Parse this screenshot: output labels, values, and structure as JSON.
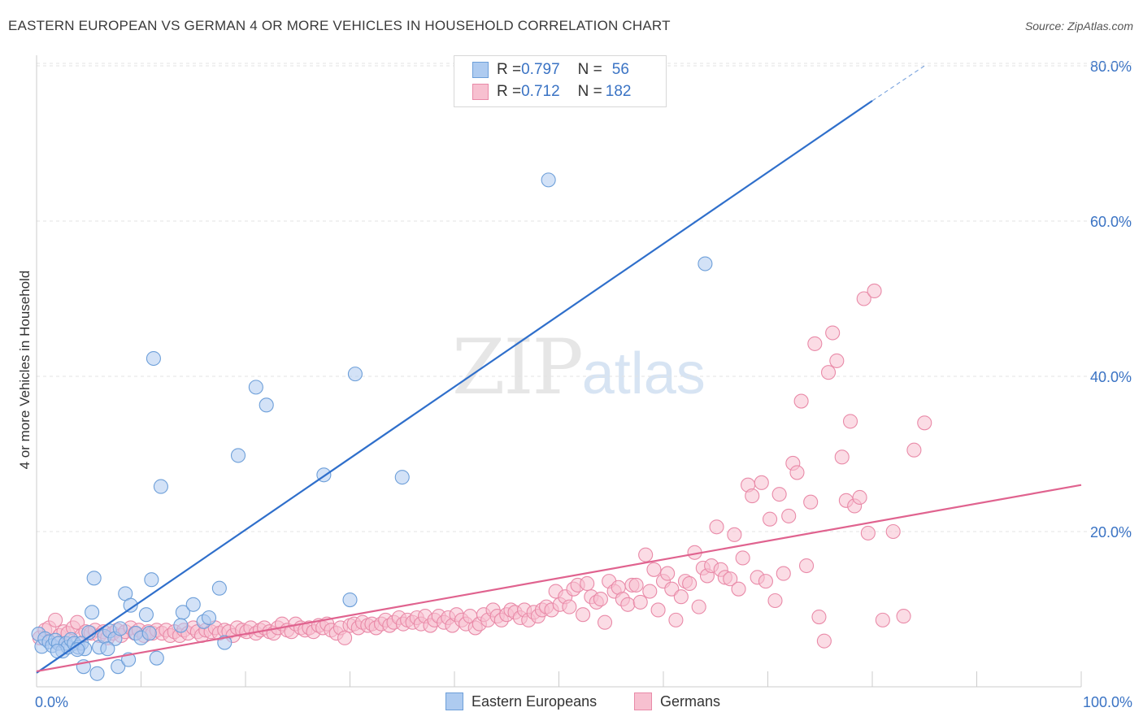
{
  "header": {
    "title": "EASTERN EUROPEAN VS GERMAN 4 OR MORE VEHICLES IN HOUSEHOLD CORRELATION CHART",
    "source": "Source: ZipAtlas.com"
  },
  "watermark": {
    "zip": "ZIP",
    "atlas": "atlas"
  },
  "legend": {
    "rows": [
      {
        "r_label": "R = ",
        "r_value": "0.797",
        "n_label": "N = ",
        "n_value": "56"
      },
      {
        "r_label": "R = ",
        "r_value": "0.712",
        "n_label": "N = ",
        "n_value": "182"
      }
    ]
  },
  "bottom_legend": {
    "series1": "Eastern Europeans",
    "series2": "Germans"
  },
  "colors": {
    "blue_fill": "#aecbf0",
    "blue_stroke": "#6d9fd9",
    "blue_line": "#2f6fcb",
    "pink_fill": "#f7c0d0",
    "pink_stroke": "#e98aa8",
    "pink_line": "#e0638f",
    "axis_label": "#3a73c4",
    "grid": "#e3e3e3"
  },
  "chart_data": {
    "type": "scatter",
    "title": "EASTERN EUROPEAN VS GERMAN 4 OR MORE VEHICLES IN HOUSEHOLD CORRELATION CHART",
    "xlabel": "",
    "ylabel": "4 or more Vehicles in Household",
    "xlim": [
      0,
      100
    ],
    "ylim": [
      0,
      82
    ],
    "x_tick_labels": [
      "0.0%",
      "100.0%"
    ],
    "y_ticks": [
      20,
      40,
      60,
      80
    ],
    "y_tick_labels": [
      "20.0%",
      "40.0%",
      "60.0%",
      "80.0%"
    ],
    "grid": true,
    "legend_position": "top-center",
    "series": [
      {
        "name": "Eastern Europeans",
        "r": 0.797,
        "n": 56,
        "trend": {
          "x0": 0,
          "y0": 1.8,
          "x1": 80,
          "y1": 75.5,
          "dash_to_x": 85,
          "dash_to_y": 80
        },
        "points": [
          [
            0.2,
            6.8
          ],
          [
            0.5,
            5.2
          ],
          [
            0.8,
            6.2
          ],
          [
            1.2,
            5.8
          ],
          [
            1.5,
            5.3
          ],
          [
            1.8,
            6.0
          ],
          [
            2.1,
            5.6
          ],
          [
            2.5,
            4.6
          ],
          [
            2.8,
            5.6
          ],
          [
            3.0,
            5.1
          ],
          [
            3.3,
            6.1
          ],
          [
            3.6,
            5.6
          ],
          [
            4.0,
            5.1
          ],
          [
            4.3,
            5.6
          ],
          [
            4.6,
            4.9
          ],
          [
            5.0,
            7.0
          ],
          [
            5.3,
            9.6
          ],
          [
            5.5,
            14.0
          ],
          [
            6.0,
            5.1
          ],
          [
            6.5,
            6.5
          ],
          [
            7.0,
            7.2
          ],
          [
            7.5,
            6.2
          ],
          [
            8.0,
            7.5
          ],
          [
            8.5,
            12.0
          ],
          [
            9.0,
            10.5
          ],
          [
            9.5,
            6.9
          ],
          [
            10.0,
            6.3
          ],
          [
            10.5,
            9.3
          ],
          [
            11.0,
            13.8
          ],
          [
            11.5,
            3.7
          ],
          [
            11.9,
            25.8
          ],
          [
            14.0,
            9.6
          ],
          [
            15.0,
            10.6
          ],
          [
            16.0,
            8.4
          ],
          [
            16.5,
            8.9
          ],
          [
            17.5,
            12.7
          ],
          [
            18.0,
            5.7
          ],
          [
            19.3,
            29.8
          ],
          [
            21.0,
            38.6
          ],
          [
            22.0,
            36.3
          ],
          [
            27.5,
            27.3
          ],
          [
            30.0,
            11.2
          ],
          [
            30.5,
            40.3
          ],
          [
            35.0,
            27.0
          ],
          [
            49.0,
            65.3
          ],
          [
            64.0,
            54.5
          ],
          [
            11.2,
            42.3
          ],
          [
            2.0,
            4.6
          ],
          [
            5.8,
            1.7
          ],
          [
            7.8,
            2.6
          ],
          [
            8.8,
            3.5
          ],
          [
            4.5,
            2.6
          ],
          [
            6.8,
            4.9
          ],
          [
            10.8,
            6.9
          ],
          [
            13.8,
            7.9
          ],
          [
            3.9,
            4.8
          ]
        ]
      },
      {
        "name": "Germans",
        "r": 0.712,
        "n": 182,
        "trend": {
          "x0": 0,
          "y0": 2.0,
          "x1": 100,
          "y1": 26.0
        },
        "points": [
          [
            0.3,
            6.3
          ],
          [
            0.8,
            7.3
          ],
          [
            1.2,
            7.6
          ],
          [
            1.8,
            8.6
          ],
          [
            2.2,
            6.6
          ],
          [
            2.6,
            7.1
          ],
          [
            3.0,
            6.9
          ],
          [
            3.5,
            7.6
          ],
          [
            3.9,
            8.3
          ],
          [
            4.3,
            6.6
          ],
          [
            4.7,
            7.1
          ],
          [
            5.2,
            6.9
          ],
          [
            5.6,
            7.3
          ],
          [
            6.0,
            6.6
          ],
          [
            6.4,
            7.1
          ],
          [
            6.8,
            6.3
          ],
          [
            7.3,
            6.9
          ],
          [
            7.7,
            7.3
          ],
          [
            8.1,
            6.6
          ],
          [
            8.5,
            7.1
          ],
          [
            9.0,
            7.6
          ],
          [
            9.4,
            6.9
          ],
          [
            9.8,
            7.3
          ],
          [
            10.3,
            6.6
          ],
          [
            10.7,
            7.1
          ],
          [
            11.1,
            6.9
          ],
          [
            11.5,
            7.3
          ],
          [
            12.0,
            6.9
          ],
          [
            12.4,
            7.3
          ],
          [
            12.8,
            6.6
          ],
          [
            13.2,
            7.1
          ],
          [
            13.7,
            6.6
          ],
          [
            14.1,
            7.3
          ],
          [
            14.5,
            6.9
          ],
          [
            15.0,
            7.6
          ],
          [
            15.4,
            7.1
          ],
          [
            15.8,
            6.6
          ],
          [
            16.2,
            7.3
          ],
          [
            16.7,
            7.1
          ],
          [
            17.1,
            7.6
          ],
          [
            17.5,
            6.9
          ],
          [
            18.0,
            7.3
          ],
          [
            18.4,
            7.1
          ],
          [
            18.8,
            6.6
          ],
          [
            19.2,
            7.6
          ],
          [
            19.7,
            7.3
          ],
          [
            20.1,
            7.1
          ],
          [
            20.5,
            7.6
          ],
          [
            21.0,
            6.9
          ],
          [
            21.4,
            7.3
          ],
          [
            21.8,
            7.6
          ],
          [
            22.3,
            7.1
          ],
          [
            22.7,
            6.9
          ],
          [
            23.1,
            7.6
          ],
          [
            23.5,
            8.1
          ],
          [
            24.0,
            7.3
          ],
          [
            24.4,
            7.1
          ],
          [
            24.8,
            8.1
          ],
          [
            25.3,
            7.6
          ],
          [
            25.7,
            7.3
          ],
          [
            26.1,
            7.6
          ],
          [
            26.5,
            7.1
          ],
          [
            27.0,
            7.9
          ],
          [
            27.4,
            7.6
          ],
          [
            27.8,
            8.1
          ],
          [
            28.2,
            7.3
          ],
          [
            28.7,
            6.9
          ],
          [
            29.1,
            7.6
          ],
          [
            29.5,
            6.3
          ],
          [
            30.0,
            7.9
          ],
          [
            30.4,
            8.1
          ],
          [
            30.8,
            7.6
          ],
          [
            31.2,
            8.3
          ],
          [
            31.7,
            7.9
          ],
          [
            32.1,
            8.1
          ],
          [
            32.5,
            7.6
          ],
          [
            33.0,
            8.1
          ],
          [
            33.4,
            8.6
          ],
          [
            33.8,
            7.9
          ],
          [
            34.2,
            8.3
          ],
          [
            34.7,
            8.9
          ],
          [
            35.1,
            8.1
          ],
          [
            35.5,
            8.6
          ],
          [
            36.0,
            8.3
          ],
          [
            36.4,
            8.9
          ],
          [
            36.8,
            8.1
          ],
          [
            37.2,
            9.1
          ],
          [
            37.7,
            7.9
          ],
          [
            38.1,
            8.6
          ],
          [
            38.5,
            9.1
          ],
          [
            39.0,
            8.3
          ],
          [
            39.4,
            8.9
          ],
          [
            39.8,
            7.9
          ],
          [
            40.2,
            9.3
          ],
          [
            40.7,
            8.6
          ],
          [
            41.1,
            8.1
          ],
          [
            41.5,
            9.1
          ],
          [
            42.0,
            7.6
          ],
          [
            42.4,
            8.1
          ],
          [
            42.8,
            9.3
          ],
          [
            43.2,
            8.6
          ],
          [
            43.7,
            9.9
          ],
          [
            44.1,
            9.1
          ],
          [
            44.5,
            8.6
          ],
          [
            45.0,
            9.3
          ],
          [
            45.4,
            9.9
          ],
          [
            45.8,
            9.6
          ],
          [
            46.3,
            8.9
          ],
          [
            46.7,
            9.9
          ],
          [
            47.1,
            8.6
          ],
          [
            47.6,
            9.6
          ],
          [
            48.0,
            9.1
          ],
          [
            48.4,
            9.9
          ],
          [
            48.8,
            10.3
          ],
          [
            49.3,
            9.9
          ],
          [
            49.7,
            12.3
          ],
          [
            50.1,
            10.6
          ],
          [
            50.6,
            11.6
          ],
          [
            51.0,
            10.3
          ],
          [
            51.4,
            12.6
          ],
          [
            51.8,
            13.1
          ],
          [
            52.3,
            9.3
          ],
          [
            52.7,
            13.3
          ],
          [
            53.1,
            11.6
          ],
          [
            53.6,
            10.9
          ],
          [
            54.0,
            11.3
          ],
          [
            54.4,
            8.3
          ],
          [
            54.8,
            13.6
          ],
          [
            55.3,
            12.3
          ],
          [
            55.7,
            12.8
          ],
          [
            56.1,
            11.3
          ],
          [
            56.6,
            10.6
          ],
          [
            57.0,
            13.1
          ],
          [
            57.4,
            13.1
          ],
          [
            57.8,
            10.9
          ],
          [
            58.3,
            17.0
          ],
          [
            58.7,
            12.3
          ],
          [
            59.1,
            15.1
          ],
          [
            59.5,
            9.9
          ],
          [
            60.0,
            13.6
          ],
          [
            60.4,
            14.6
          ],
          [
            60.8,
            12.6
          ],
          [
            61.2,
            8.6
          ],
          [
            61.7,
            11.6
          ],
          [
            62.1,
            13.6
          ],
          [
            62.5,
            13.3
          ],
          [
            63.0,
            17.3
          ],
          [
            63.4,
            10.3
          ],
          [
            63.8,
            15.3
          ],
          [
            64.2,
            14.3
          ],
          [
            64.6,
            15.6
          ],
          [
            65.1,
            20.6
          ],
          [
            65.5,
            15.1
          ],
          [
            65.9,
            14.1
          ],
          [
            66.4,
            13.9
          ],
          [
            66.8,
            19.6
          ],
          [
            67.2,
            12.6
          ],
          [
            67.6,
            16.6
          ],
          [
            68.1,
            26.0
          ],
          [
            68.5,
            24.6
          ],
          [
            69.0,
            14.1
          ],
          [
            69.4,
            26.3
          ],
          [
            69.8,
            13.6
          ],
          [
            70.2,
            21.6
          ],
          [
            70.7,
            11.1
          ],
          [
            71.1,
            24.8
          ],
          [
            71.5,
            14.6
          ],
          [
            72.0,
            22.0
          ],
          [
            72.4,
            28.8
          ],
          [
            72.8,
            27.6
          ],
          [
            73.2,
            36.8
          ],
          [
            73.7,
            15.6
          ],
          [
            74.1,
            23.8
          ],
          [
            74.5,
            44.2
          ],
          [
            74.9,
            9.0
          ],
          [
            75.4,
            5.9
          ],
          [
            75.8,
            40.5
          ],
          [
            76.2,
            45.6
          ],
          [
            76.6,
            42.0
          ],
          [
            77.1,
            29.6
          ],
          [
            77.5,
            24.0
          ],
          [
            77.9,
            34.2
          ],
          [
            78.3,
            23.3
          ],
          [
            78.8,
            24.4
          ],
          [
            79.2,
            50.0
          ],
          [
            79.6,
            19.8
          ],
          [
            80.2,
            51.0
          ],
          [
            81.0,
            8.6
          ],
          [
            82.0,
            20.0
          ],
          [
            83.0,
            9.1
          ],
          [
            84.0,
            30.5
          ],
          [
            85.0,
            34.0
          ]
        ]
      }
    ]
  }
}
